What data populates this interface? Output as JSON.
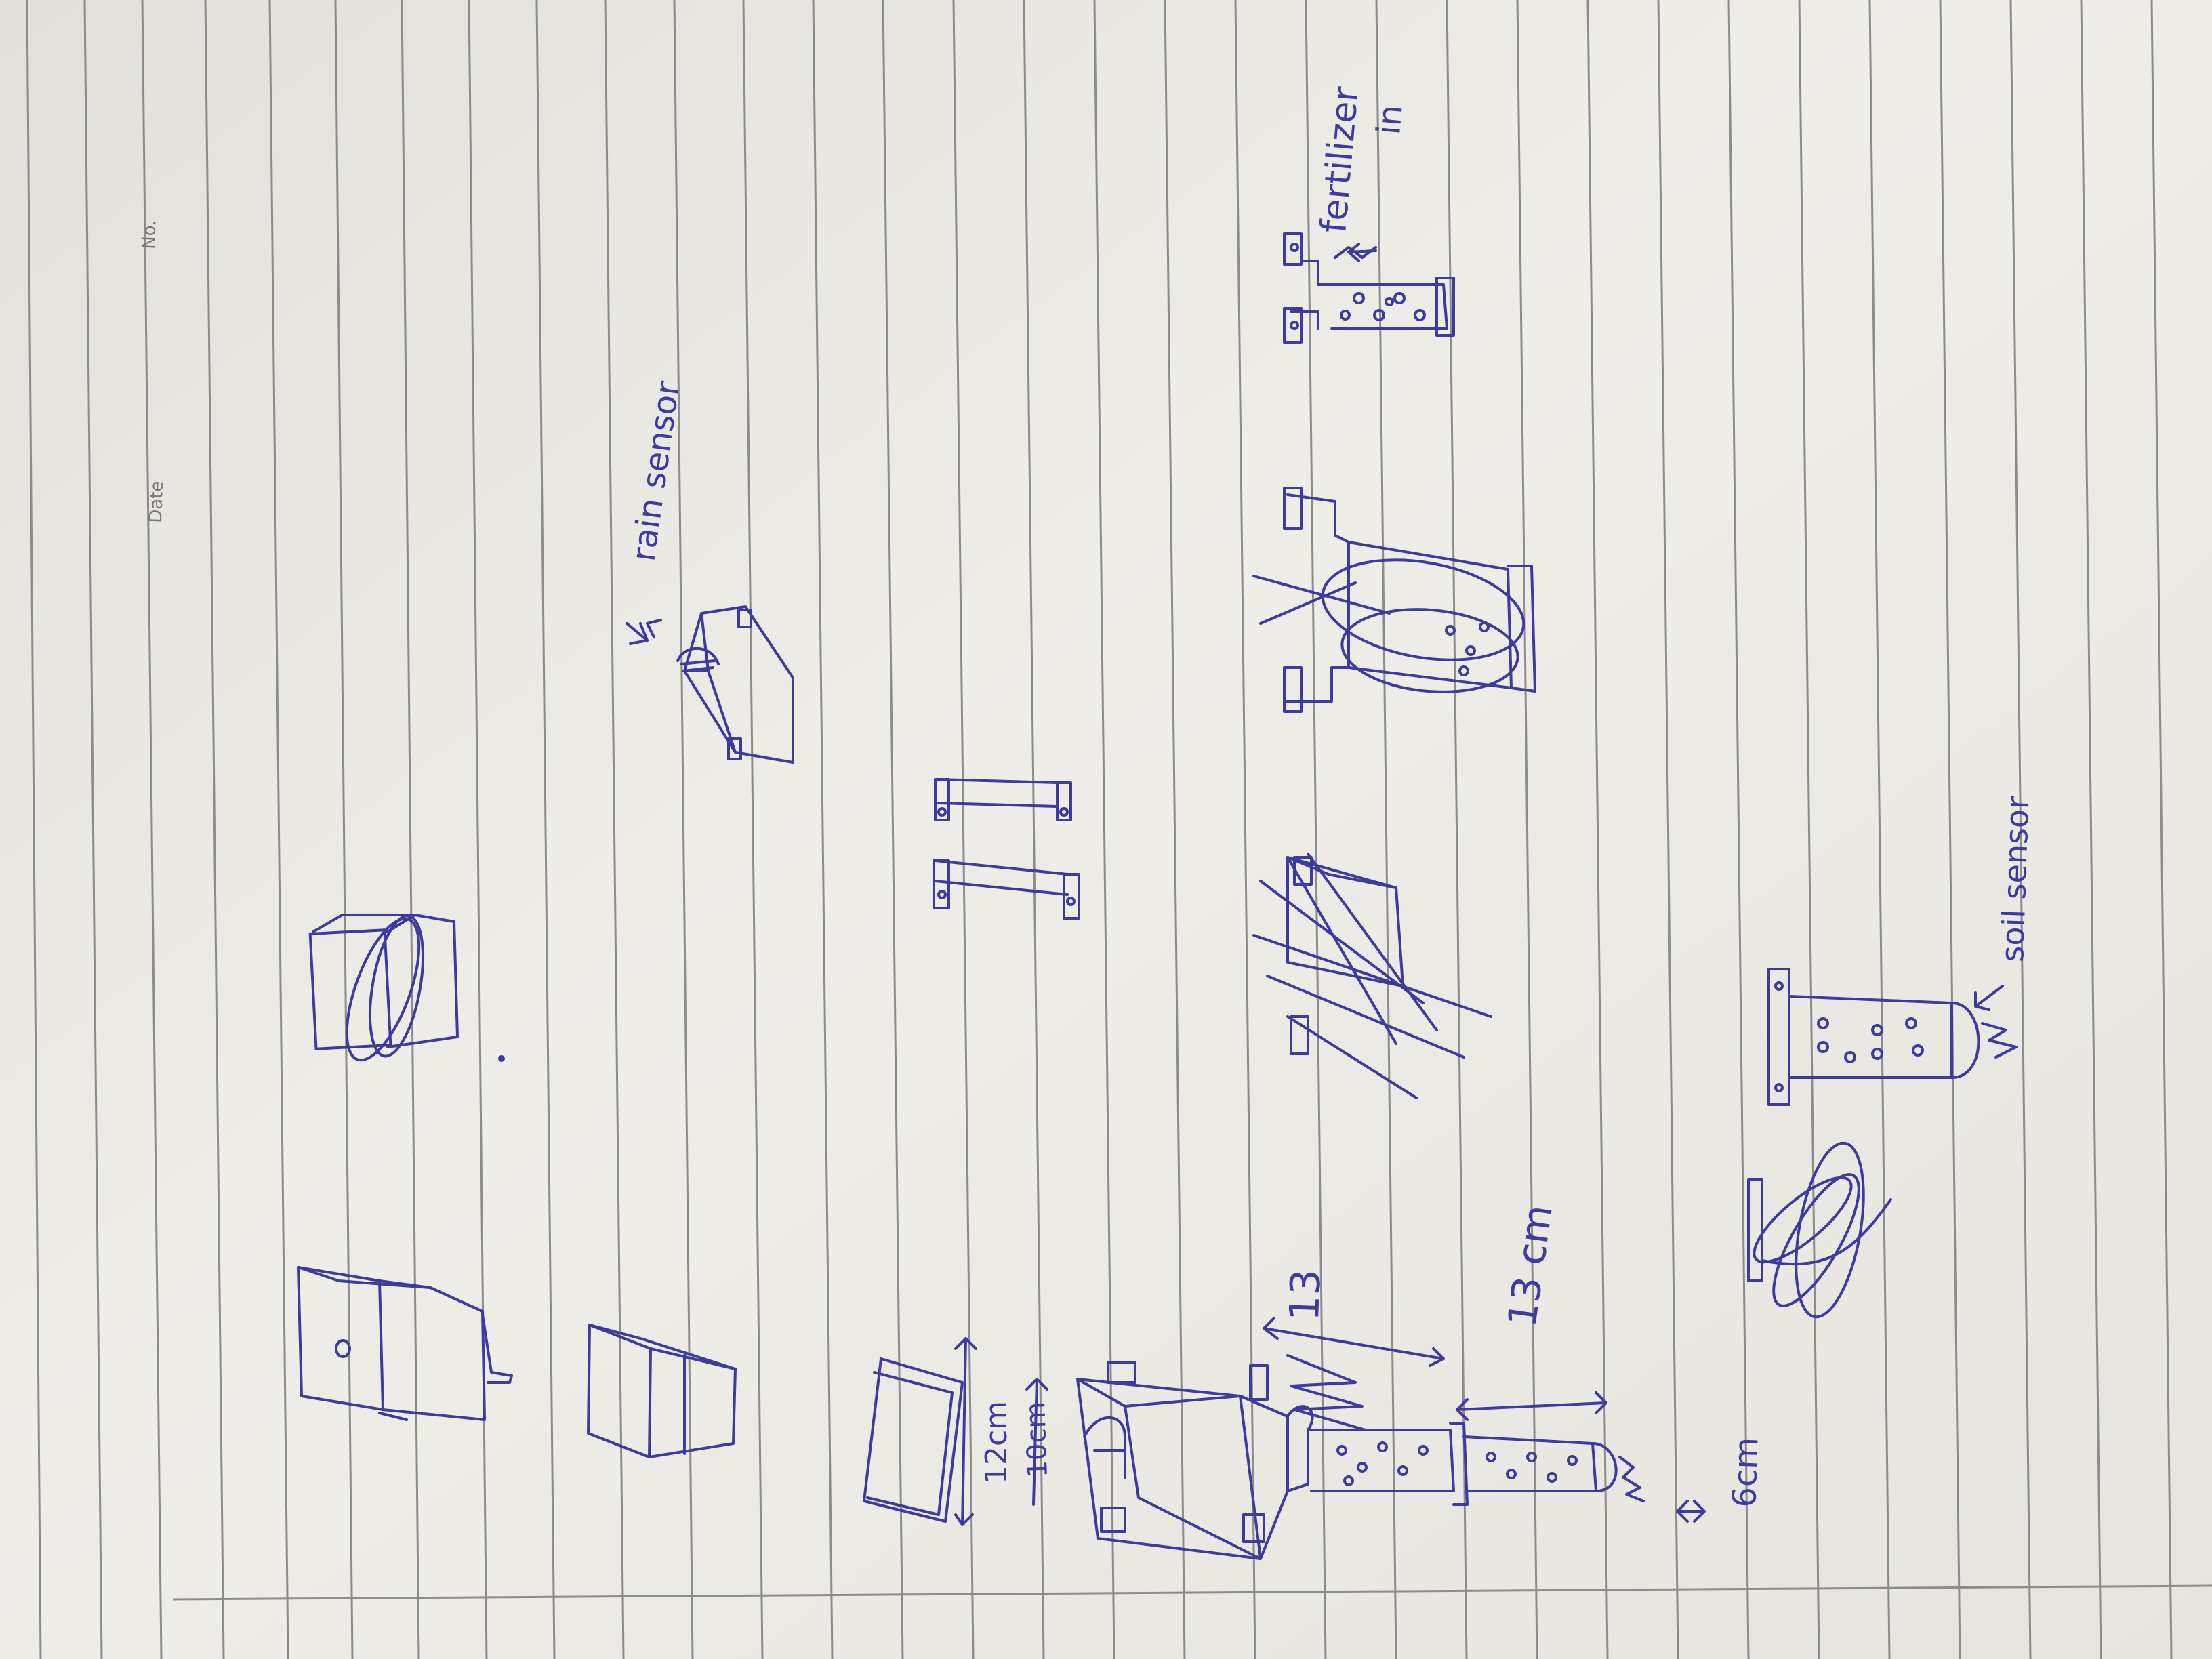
{
  "colors": {
    "paper": "#eeebe6",
    "paper_shadow": "#d8d4ce",
    "rule_line": "#8d8c8c",
    "ink": "#3d3aa0",
    "print": "#777777"
  },
  "page_header": {
    "date_label": "Date",
    "no_label": "No."
  },
  "annotations": {
    "rain_sensor": "rain sensor",
    "soil_sensor": "soil sensor",
    "fertilizer_in_line1": "fertilizer",
    "fertilizer_in_line2": "in",
    "dim_12cm": "12cm",
    "dim_10cm": "10cm",
    "dim_13_top": "13",
    "dim_13cm": "13 cm",
    "dim_6cm": "6cm"
  }
}
